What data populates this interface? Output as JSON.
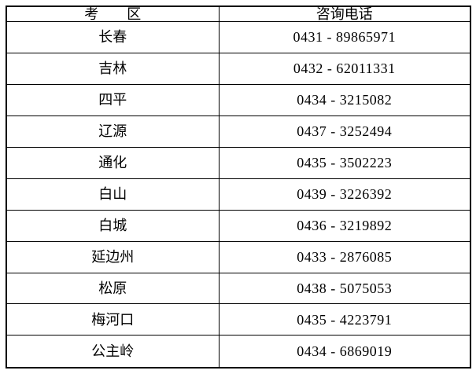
{
  "table": {
    "headers": {
      "region": "考　　区",
      "phone": "咨询电话"
    },
    "rows": [
      {
        "region": "长春",
        "phone": "0431 - 89865971"
      },
      {
        "region": "吉林",
        "phone": "0432 - 62011331"
      },
      {
        "region": "四平",
        "phone": "0434 - 3215082"
      },
      {
        "region": "辽源",
        "phone": "0437 - 3252494"
      },
      {
        "region": "通化",
        "phone": "0435 - 3502223"
      },
      {
        "region": "白山",
        "phone": "0439 - 3226392"
      },
      {
        "region": "白城",
        "phone": "0436 - 3219892"
      },
      {
        "region": "延边州",
        "phone": "0433 - 2876085"
      },
      {
        "region": "松原",
        "phone": "0438 - 5075053"
      },
      {
        "region": "梅河口",
        "phone": "0435 - 4223791"
      },
      {
        "region": "公主岭",
        "phone": "0434 - 6869019"
      }
    ]
  }
}
